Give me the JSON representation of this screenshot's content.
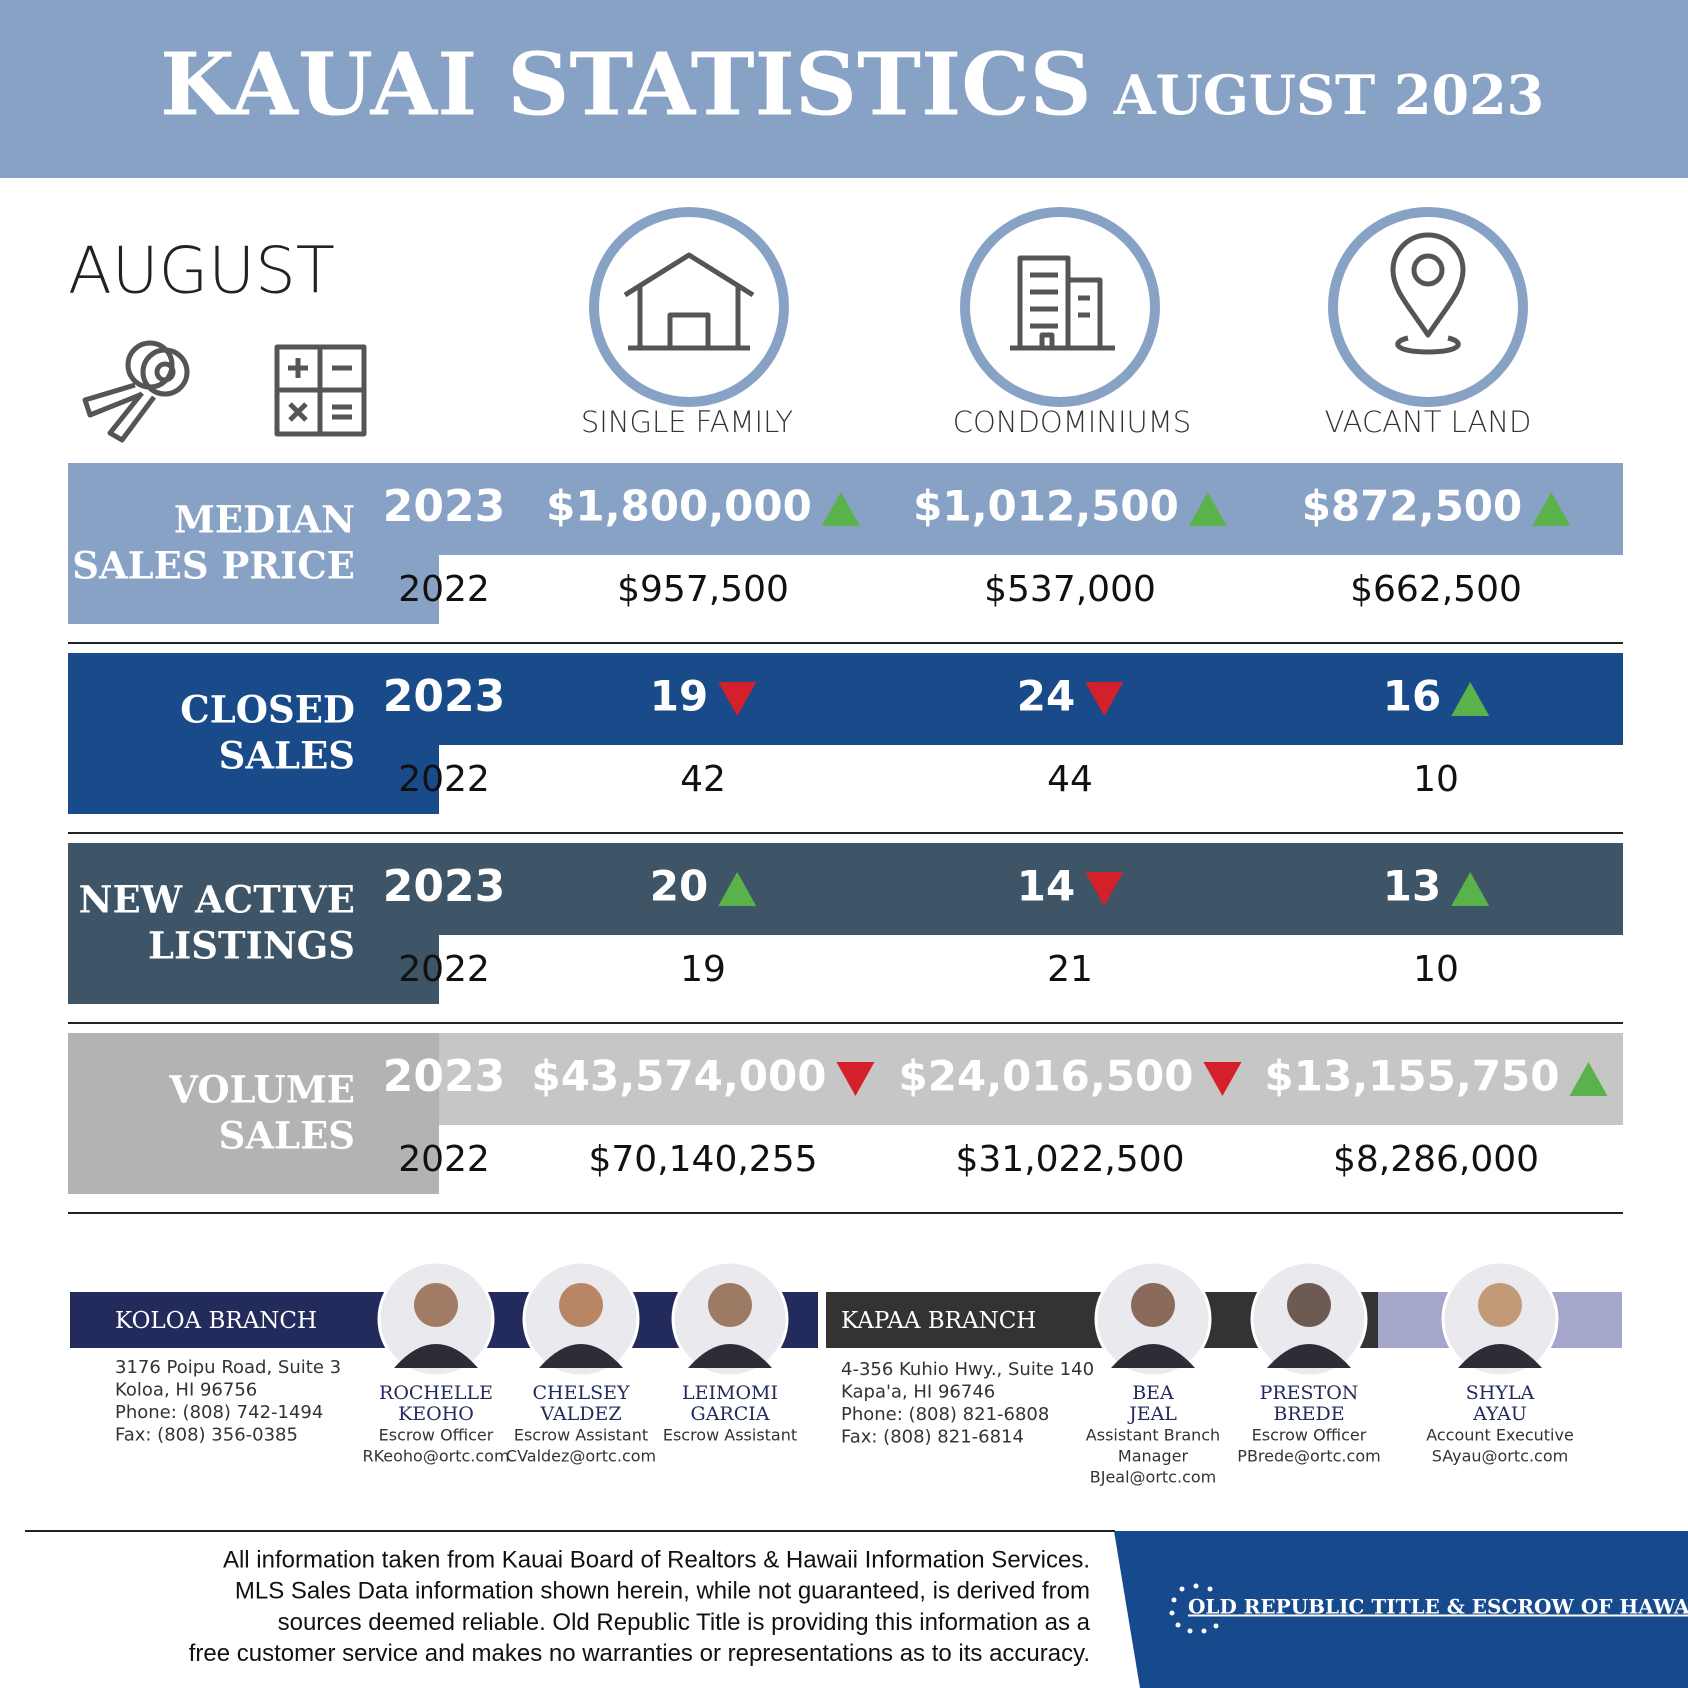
{
  "header": {
    "title": "KAUAI STATISTICS",
    "subtitle": "AUGUST 2023"
  },
  "month": "AUGUST",
  "columns": [
    "SINGLE FAMILY",
    "CONDOMINIUMS",
    "VACANT LAND"
  ],
  "sections": [
    {
      "label_lines": [
        "MEDIAN",
        "SALES PRICE"
      ],
      "rows": [
        {
          "year": "2023",
          "values": [
            "$1,800,000",
            "$1,012,500",
            "$872,500"
          ],
          "trends": [
            "up",
            "up",
            "up"
          ]
        },
        {
          "year": "2022",
          "values": [
            "$957,500",
            "$537,000",
            "$662,500"
          ]
        }
      ]
    },
    {
      "label_lines": [
        "CLOSED",
        "SALES"
      ],
      "rows": [
        {
          "year": "2023",
          "values": [
            "19",
            "24",
            "16"
          ],
          "trends": [
            "down",
            "down",
            "up"
          ]
        },
        {
          "year": "2022",
          "values": [
            "42",
            "44",
            "10"
          ]
        }
      ]
    },
    {
      "label_lines": [
        "NEW ACTIVE",
        "LISTINGS"
      ],
      "rows": [
        {
          "year": "2023",
          "values": [
            "20",
            "14",
            "13"
          ],
          "trends": [
            "up",
            "down",
            "up"
          ]
        },
        {
          "year": "2022",
          "values": [
            "19",
            "21",
            "10"
          ]
        }
      ]
    },
    {
      "label_lines": [
        "VOLUME",
        "SALES"
      ],
      "rows": [
        {
          "year": "2023",
          "values": [
            "$43,574,000",
            "$24,016,500",
            "$13,155,750"
          ],
          "trends": [
            "down",
            "down",
            "up"
          ]
        },
        {
          "year": "2022",
          "values": [
            "$70,140,255",
            "$31,022,500",
            "$8,286,000"
          ]
        }
      ]
    }
  ],
  "branches": [
    {
      "name": "KOLOA BRANCH",
      "address_lines": [
        "3176 Poipu Road, Suite 3",
        "Koloa, HI 96756",
        "Phone: (808) 742-1494",
        "Fax: (808) 356-0385"
      ]
    },
    {
      "name": "KAPAA BRANCH",
      "address_lines": [
        "4-356 Kuhio Hwy., Suite 140",
        "Kapa'a, HI 96746",
        "Phone: (808) 821-6808",
        "Fax: (808) 821-6814"
      ]
    }
  ],
  "staff": [
    {
      "name_lines": [
        "ROCHELLE",
        "KEOHO"
      ],
      "role_lines": [
        "Escrow Officer"
      ],
      "email": "RKeoho@ortc.com"
    },
    {
      "name_lines": [
        "CHELSEY",
        "VALDEZ"
      ],
      "role_lines": [
        "Escrow Assistant"
      ],
      "email": "CValdez@ortc.com"
    },
    {
      "name_lines": [
        "LEIMOMI",
        "GARCIA"
      ],
      "role_lines": [
        "Escrow Assistant"
      ]
    },
    {
      "name_lines": [
        "BEA",
        "JEAL"
      ],
      "role_lines": [
        "Assistant Branch",
        "Manager"
      ],
      "email": "BJeal@ortc.com"
    },
    {
      "name_lines": [
        "PRESTON",
        "BREDE"
      ],
      "role_lines": [
        "Escrow Officer"
      ],
      "email": "PBrede@ortc.com"
    },
    {
      "name_lines": [
        "SHYLA",
        "AYAU"
      ],
      "role_lines": [
        "Account Executive"
      ],
      "email": "SAyau@ortc.com"
    }
  ],
  "disclaimer": [
    "All information taken from Kauai Board of Realtors & Hawaii Information Services.",
    "MLS Sales Data information shown herein, while not guaranteed, is derived from",
    "sources deemed reliable. Old Republic  Title is providing this information as a",
    "free customer service and makes no warranties or representations as to its accuracy."
  ],
  "logo": "OLD REPUBLIC TITLE & ESCROW OF HAWAII"
}
